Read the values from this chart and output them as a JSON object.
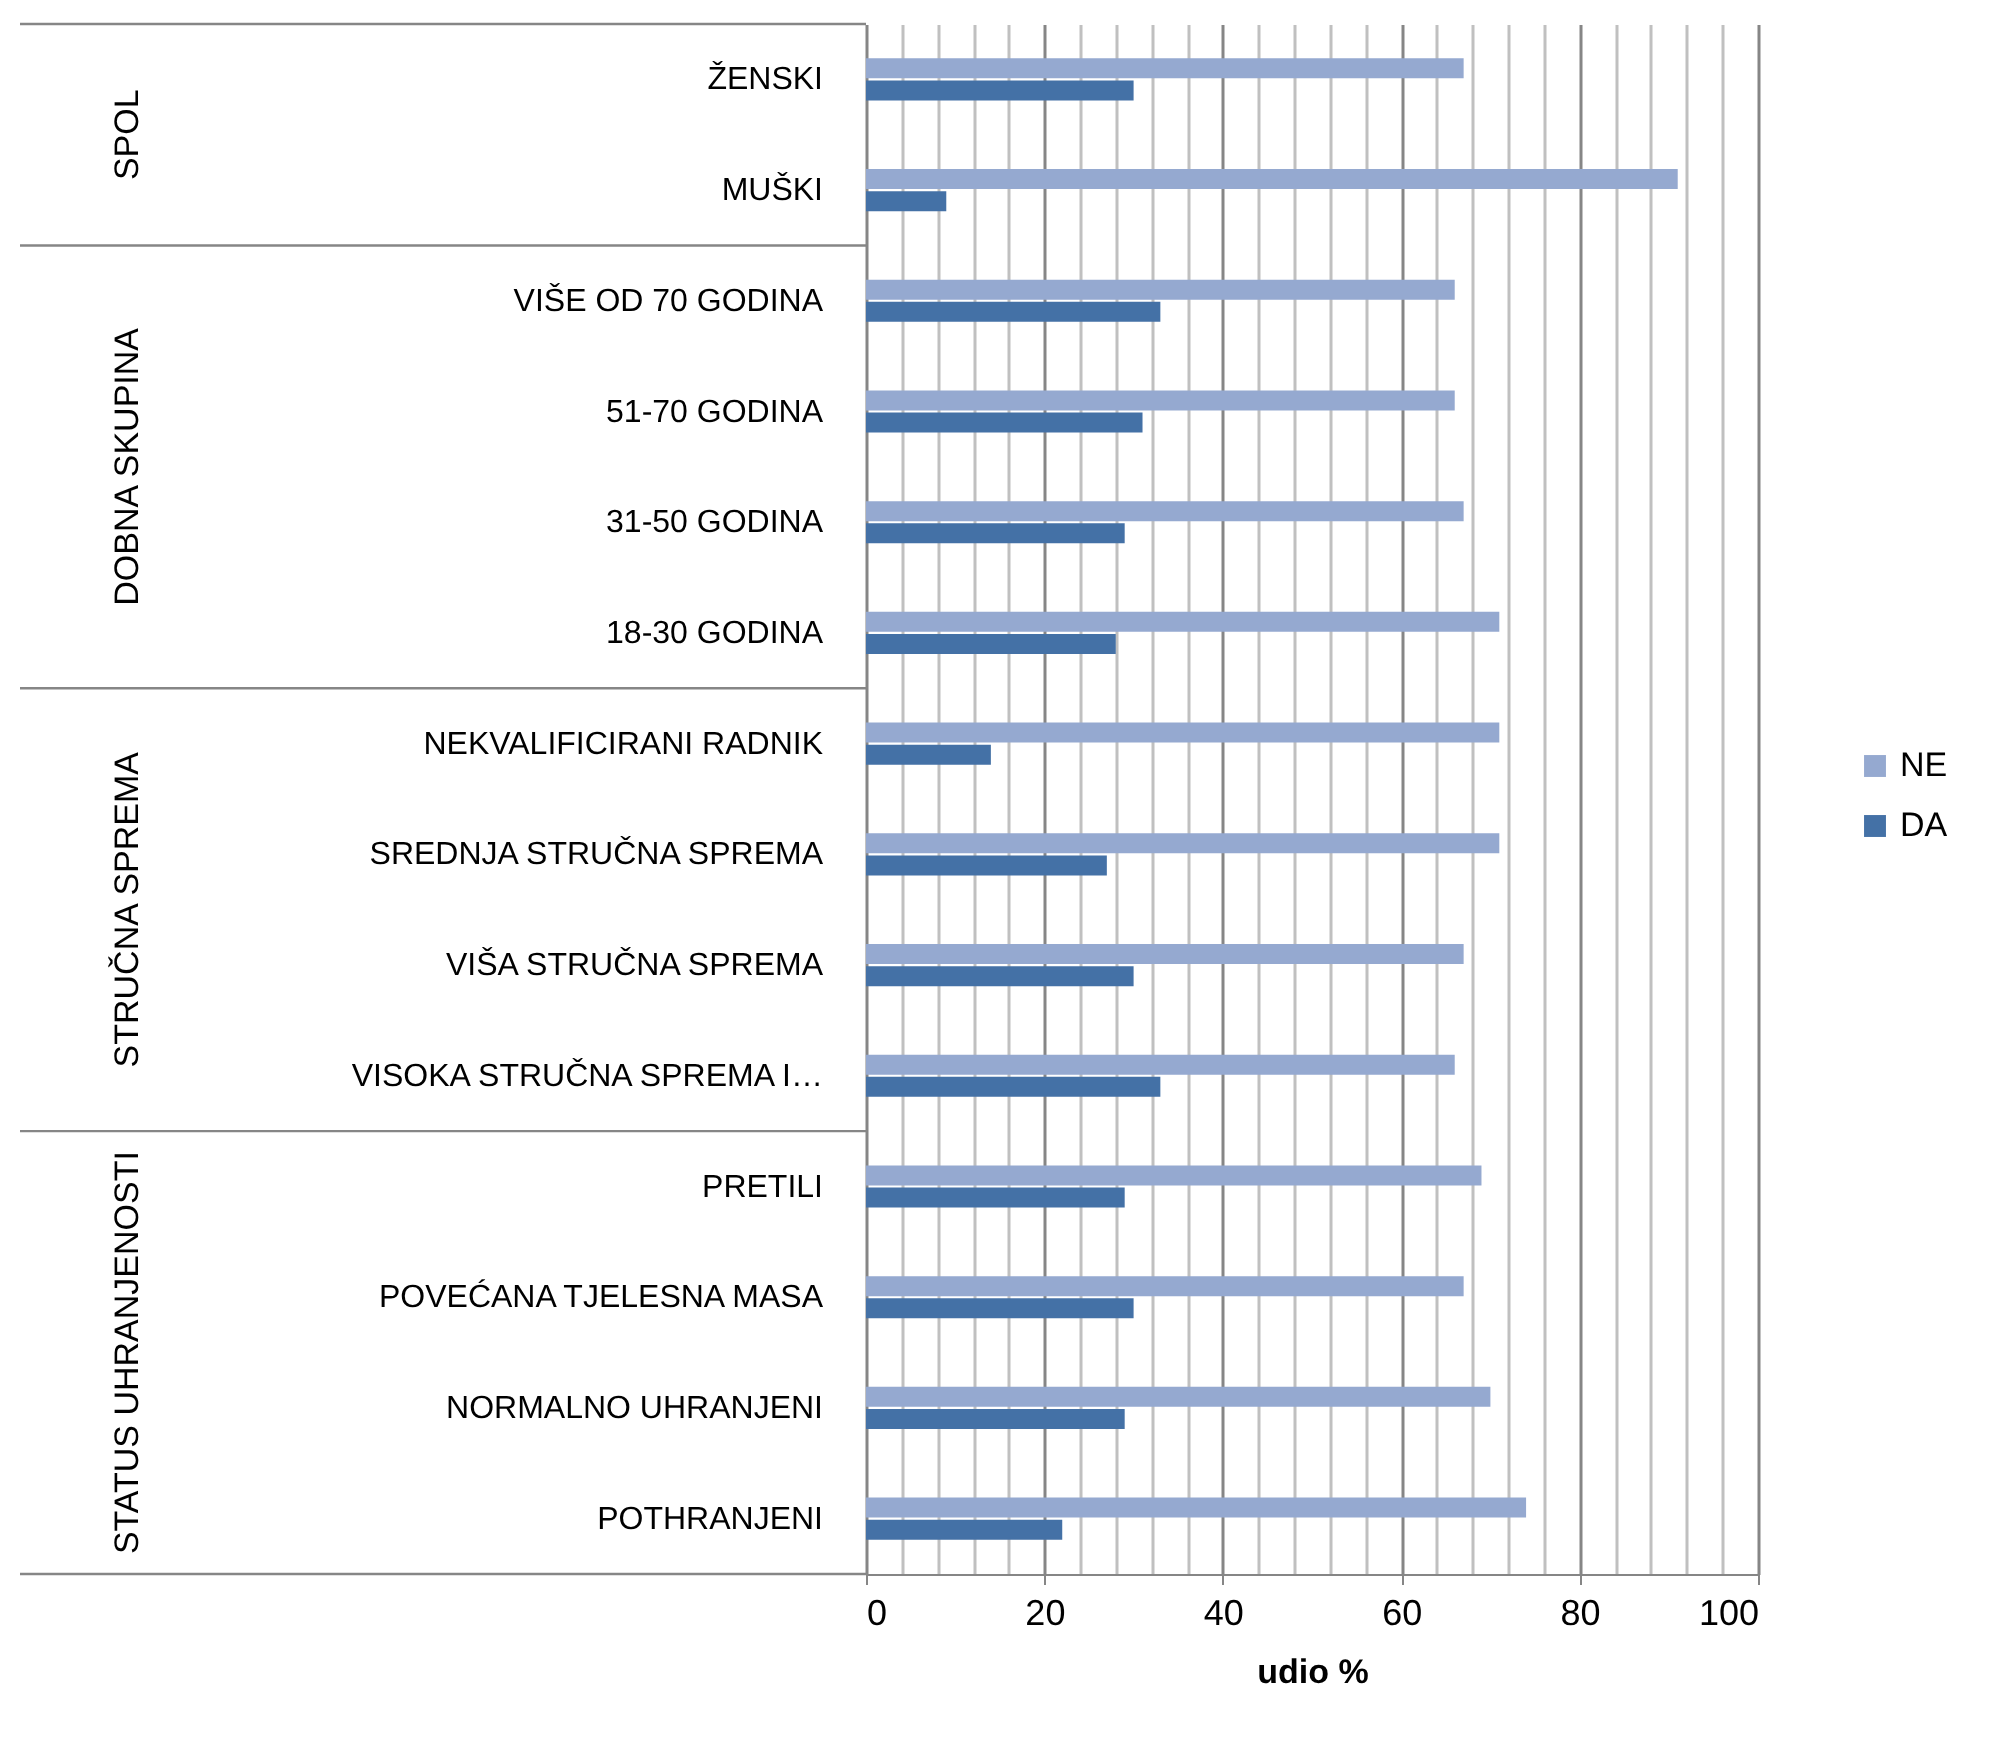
{
  "chart_data": {
    "type": "bar",
    "orientation": "horizontal",
    "xlabel": "udio %",
    "categories": [
      "ŽENSKI",
      "MUŠKI",
      "VIŠE OD 70 GODINA",
      "51-70 GODINA",
      "31-50 GODINA",
      "18-30 GODINA",
      "NEKVALIFICIRANI RADNIK",
      "SREDNJA STRUČNA SPREMA",
      "VIŠA STRUČNA SPREMA",
      "VISOKA STRUČNA SPREMA I…",
      "PRETILI",
      "POVEĆANA TJELESNA MASA",
      "NORMALNO UHRANJENI",
      "POTHRANJENI"
    ],
    "series": [
      {
        "name": "NE",
        "color": "#95a9d0",
        "values": [
          67,
          91,
          66,
          66,
          67,
          71,
          71,
          71,
          67,
          66,
          69,
          67,
          70,
          74
        ]
      },
      {
        "name": "DA",
        "color": "#4471a6",
        "values": [
          30,
          9,
          33,
          31,
          29,
          28,
          14,
          27,
          30,
          33,
          29,
          30,
          29,
          22
        ]
      }
    ],
    "annotations": [
      "SPOL",
      "DOBNA SKUPINA",
      "STRUČNA SPREMA",
      "STATUS UHRANJENOSTI"
    ],
    "xlim": [
      0,
      100
    ],
    "xticks": [
      0,
      {
        "value": 4,
        "label": null
      },
      {
        "value": 8,
        "label": null
      },
      {
        "value": 12,
        "label": null
      },
      {
        "value": 16,
        "label": null
      },
      20,
      {
        "value": 24,
        "label": null
      },
      {
        "value": 28,
        "label": null
      },
      {
        "value": 32,
        "label": null
      },
      {
        "value": 36,
        "label": null
      },
      40,
      {
        "value": 44,
        "label": null
      },
      {
        "value": 48,
        "label": null
      },
      {
        "value": 52,
        "label": null
      },
      {
        "value": 56,
        "label": null
      },
      60,
      {
        "value": 64,
        "label": null
      },
      {
        "value": 68,
        "label": null
      },
      {
        "value": 72,
        "label": null
      },
      {
        "value": 76,
        "label": null
      },
      80,
      {
        "value": 84,
        "label": null
      },
      {
        "value": 88,
        "label": null
      },
      {
        "value": 92,
        "label": null
      },
      {
        "value": 96,
        "label": null
      },
      100
    ],
    "grid": "x",
    "legend": "right"
  }
}
